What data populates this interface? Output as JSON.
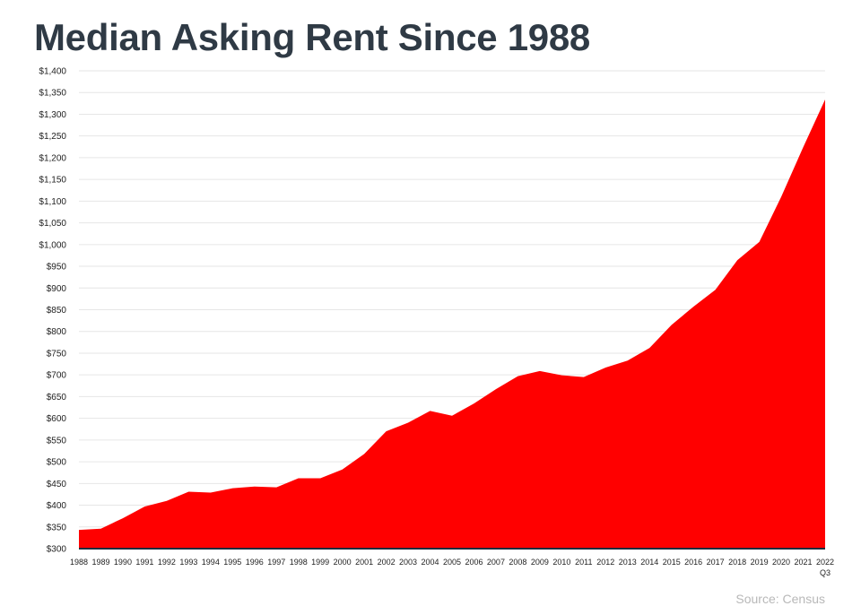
{
  "chart_data": {
    "type": "area",
    "title": "Median Asking Rent Since 1988",
    "xlabel": "",
    "ylabel": "",
    "ylim": [
      300,
      1400
    ],
    "yticks": [
      "$300",
      "$350",
      "$400",
      "$450",
      "$500",
      "$550",
      "$600",
      "$650",
      "$700",
      "$750",
      "$800",
      "$850",
      "$900",
      "$950",
      "$1,000",
      "$1,050",
      "$1,100",
      "$1,150",
      "$1,200",
      "$1,250",
      "$1,300",
      "$1,350",
      "$1,400"
    ],
    "categories": [
      "1988",
      "1989",
      "1990",
      "1991",
      "1992",
      "1993",
      "1994",
      "1995",
      "1996",
      "1997",
      "1998",
      "1999",
      "2000",
      "2001",
      "2002",
      "2003",
      "2004",
      "2005",
      "2006",
      "2007",
      "2008",
      "2009",
      "2010",
      "2011",
      "2012",
      "2013",
      "2014",
      "2015",
      "2016",
      "2017",
      "2018",
      "2019",
      "2020",
      "2021",
      "2022"
    ],
    "last_category_sublabel": "Q3",
    "values": [
      343,
      346,
      370,
      397,
      410,
      431,
      429,
      439,
      443,
      441,
      462,
      462,
      482,
      518,
      570,
      590,
      617,
      606,
      634,
      667,
      697,
      709,
      699,
      695,
      717,
      733,
      762,
      815,
      857,
      896,
      964,
      1006,
      1110,
      1224,
      1334
    ],
    "fill_color": "#ff0000",
    "grid": true,
    "legend": "none"
  },
  "source_text": "Source: Census"
}
